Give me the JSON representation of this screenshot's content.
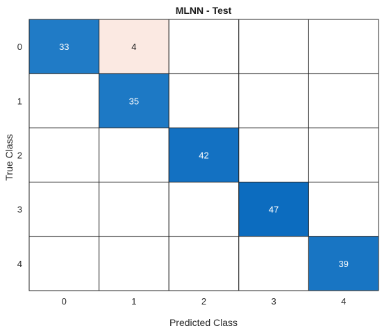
{
  "chart_data": {
    "type": "heatmap",
    "title": "MLNN - Test",
    "xlabel": "Predicted Class",
    "ylabel": "True Class",
    "x_categories": [
      "0",
      "1",
      "2",
      "3",
      "4"
    ],
    "y_categories": [
      "0",
      "1",
      "2",
      "3",
      "4"
    ],
    "matrix": [
      [
        33,
        4,
        null,
        null,
        null
      ],
      [
        null,
        35,
        null,
        null,
        null
      ],
      [
        null,
        null,
        42,
        null,
        null
      ],
      [
        null,
        null,
        null,
        47,
        null
      ],
      [
        null,
        null,
        null,
        null,
        39
      ]
    ],
    "colors": {
      "diagonal_light": "#4a9bd6",
      "diagonal_dark": "#0c6cbf",
      "off_diagonal": "#fbe9e2",
      "empty": "#ffffff",
      "grid": "#262626",
      "text_dark": "#1a1a1a",
      "text_light": "#ffffff"
    }
  }
}
